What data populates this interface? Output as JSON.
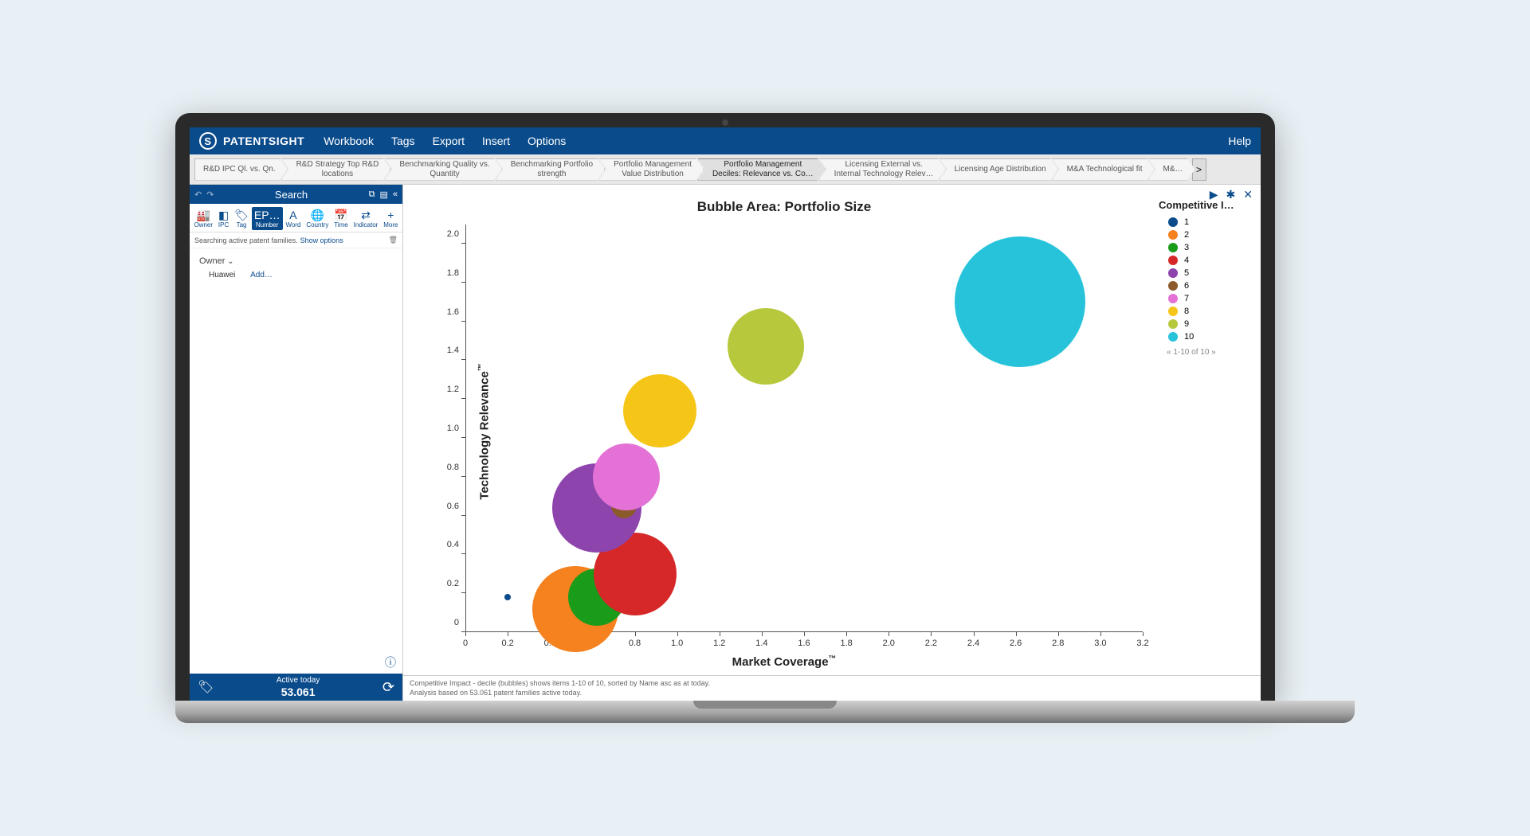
{
  "app": {
    "name": "PATENTSIGHT",
    "help": "Help"
  },
  "menu": [
    "Workbook",
    "Tags",
    "Export",
    "Insert",
    "Options"
  ],
  "breadcrumbs": [
    {
      "l1": "R&D IPC Ql. vs. Qn.",
      "l2": ""
    },
    {
      "l1": "R&D Strategy Top R&D",
      "l2": "locations"
    },
    {
      "l1": "Benchmarking Quality vs.",
      "l2": "Quantity"
    },
    {
      "l1": "Benchmarking Portfolio",
      "l2": "strength"
    },
    {
      "l1": "Portfolio Management",
      "l2": "Value Distribution"
    },
    {
      "l1": "Portfolio Management",
      "l2": "Deciles: Relevance vs. Co…",
      "active": true
    },
    {
      "l1": "Licensing External vs.",
      "l2": "Internal  Technology Relev…"
    },
    {
      "l1": "Licensing Age Distribution",
      "l2": ""
    },
    {
      "l1": "M&A Technological fit",
      "l2": ""
    },
    {
      "l1": "M&…",
      "l2": ""
    }
  ],
  "search": {
    "title": "Search",
    "toolbar": [
      {
        "label": "Owner",
        "icon": "🏭"
      },
      {
        "label": "IPC",
        "icon": "◧"
      },
      {
        "label": "Tag",
        "icon": "🏷"
      },
      {
        "label": "Number",
        "icon": "EP…",
        "highlighted": true
      },
      {
        "label": "Word",
        "icon": "A"
      },
      {
        "label": "Country",
        "icon": "🌐"
      },
      {
        "label": "Time",
        "icon": "📅"
      },
      {
        "label": "Indicator",
        "icon": "⇄"
      },
      {
        "label": "More",
        "icon": "+"
      }
    ],
    "status_prefix": "Searching active patent families.",
    "status_link": "Show options",
    "owner_label": "Owner",
    "owner_value": "Huawei",
    "add_label": "Add…"
  },
  "sidebar_footer": {
    "label": "Active today",
    "count": "53.061"
  },
  "chart": {
    "title": "Bubble Area:  Portfolio Size",
    "x_label": "Market Coverage™",
    "y_label": "Technology Relevance™",
    "x_range": [
      0,
      3.2
    ],
    "y_range": [
      0,
      2.1
    ],
    "x_ticks": [
      0,
      0.2,
      0.4,
      0.6,
      0.8,
      1.0,
      1.2,
      1.4,
      1.6,
      1.8,
      2.0,
      2.2,
      2.4,
      2.6,
      2.8,
      3.0,
      3.2
    ],
    "y_ticks": [
      0,
      0.2,
      0.4,
      0.6,
      0.8,
      1.0,
      1.2,
      1.4,
      1.6,
      1.8,
      2.0
    ],
    "bubbles": [
      {
        "x": 0.2,
        "y": 0.18,
        "r": 4,
        "color": "#0a4b8c"
      },
      {
        "x": 0.52,
        "y": 0.12,
        "r": 54,
        "color": "#f5821f"
      },
      {
        "x": 0.62,
        "y": 0.18,
        "r": 36,
        "color": "#1a9b1a"
      },
      {
        "x": 0.8,
        "y": 0.3,
        "r": 52,
        "color": "#d62828"
      },
      {
        "x": 0.62,
        "y": 0.64,
        "r": 56,
        "color": "#8e44ad"
      },
      {
        "x": 0.75,
        "y": 0.65,
        "r": 16,
        "color": "#8b5a2b"
      },
      {
        "x": 0.76,
        "y": 0.8,
        "r": 42,
        "color": "#e471d5"
      },
      {
        "x": 0.92,
        "y": 1.14,
        "r": 46,
        "color": "#f5c518"
      },
      {
        "x": 1.42,
        "y": 1.47,
        "r": 48,
        "color": "#b8c83c"
      },
      {
        "x": 2.62,
        "y": 1.7,
        "r": 82,
        "color": "#27c3db"
      }
    ],
    "legend_title": "Competitive I…",
    "legend": [
      {
        "label": "1",
        "color": "#0a4b8c"
      },
      {
        "label": "2",
        "color": "#f5821f"
      },
      {
        "label": "3",
        "color": "#1a9b1a"
      },
      {
        "label": "4",
        "color": "#d62828"
      },
      {
        "label": "5",
        "color": "#8e44ad"
      },
      {
        "label": "6",
        "color": "#8b5a2b"
      },
      {
        "label": "7",
        "color": "#e471d5"
      },
      {
        "label": "8",
        "color": "#f5c518"
      },
      {
        "label": "9",
        "color": "#b8c83c"
      },
      {
        "label": "10",
        "color": "#27c3db"
      }
    ],
    "legend_pager": "«  1-10 of 10  »",
    "footer1": "Competitive Impact - decile (bubbles) shows items 1-10 of 10, sorted by Name asc as at today.",
    "footer2": "Analysis based on 53.061 patent families active today."
  }
}
